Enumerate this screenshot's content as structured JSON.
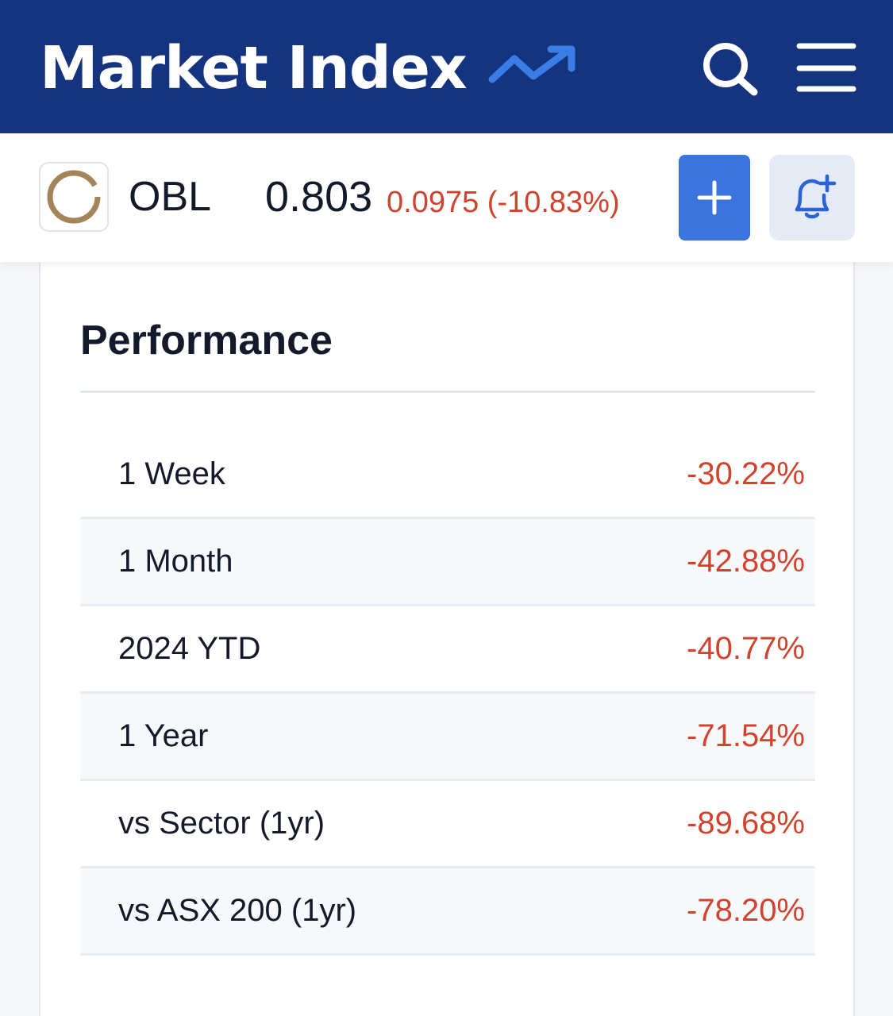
{
  "header": {
    "brand": "Market Index",
    "brand_icon": "trending-up-icon",
    "search_icon": "search-icon",
    "menu_icon": "hamburger-menu-icon"
  },
  "ticker": {
    "code": "OBL",
    "price": "0.803",
    "change": "0.0975 (-10.83%)",
    "change_color": "#d0432e",
    "add_icon": "plus-icon",
    "alert_icon": "bell-plus-icon"
  },
  "performance": {
    "title": "Performance",
    "rows": [
      {
        "label": "1 Week",
        "value": "-30.22%"
      },
      {
        "label": "1 Month",
        "value": "-42.88%"
      },
      {
        "label": "2024 YTD",
        "value": "-40.77%"
      },
      {
        "label": "1 Year",
        "value": "-71.54%"
      },
      {
        "label": "vs Sector (1yr)",
        "value": "-89.68%"
      },
      {
        "label": "vs ASX 200 (1yr)",
        "value": "-78.20%"
      }
    ]
  },
  "colors": {
    "header_bg": "#15347f",
    "accent_blue": "#3a74dd",
    "negative": "#d0432e"
  }
}
